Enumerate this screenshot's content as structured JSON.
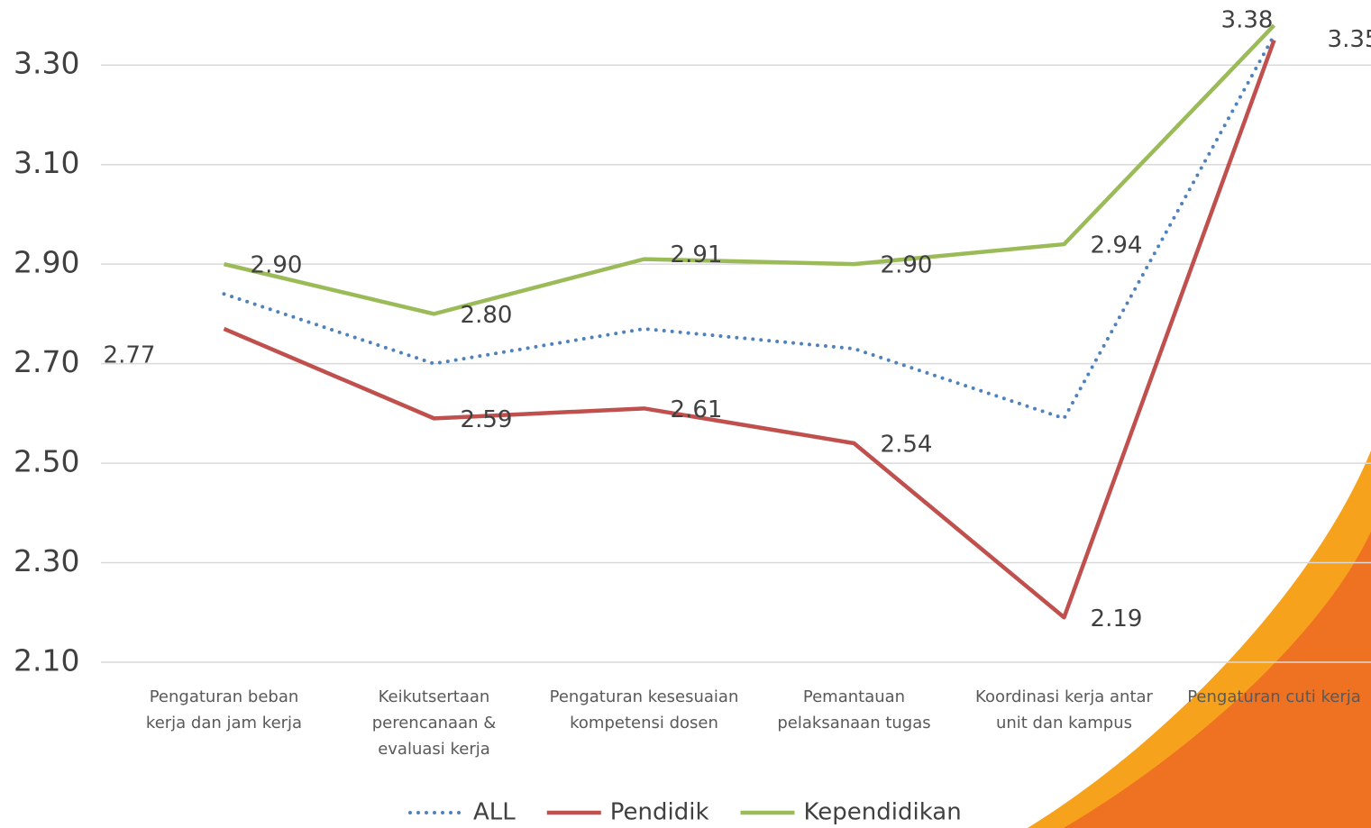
{
  "chart_data": {
    "type": "line",
    "categories": [
      "Pengaturan beban kerja dan jam kerja",
      "Keikutsertaan perencanaan & evaluasi kerja",
      "Pengaturan kesesuaian kompetensi dosen",
      "Pemantauan pelaksanaan tugas",
      "Koordinasi kerja antar unit dan kampus",
      "Pengaturan cuti kerja"
    ],
    "series": [
      {
        "name": "ALL",
        "color": "#4f81bd",
        "dash": true,
        "values": [
          2.84,
          2.7,
          2.77,
          2.73,
          2.59,
          3.36
        ]
      },
      {
        "name": "Pendidik",
        "color": "#c0504d",
        "values": [
          2.77,
          2.59,
          2.61,
          2.54,
          2.19,
          3.35
        ],
        "value_labels": [
          "2.77",
          "2.59",
          "2.61",
          "2.54",
          "2.19",
          "3.35"
        ]
      },
      {
        "name": "Kependidikan",
        "color": "#9bbb59",
        "values": [
          2.9,
          2.8,
          2.91,
          2.9,
          2.94,
          3.38
        ],
        "value_labels": [
          "2.90",
          "2.80",
          "2.91",
          "2.90",
          "2.94",
          "3.38"
        ]
      }
    ],
    "ylim": [
      2.1,
      3.4
    ],
    "yticks": [
      {
        "value": 2.1,
        "label": "2.10"
      },
      {
        "value": 2.3,
        "label": "2.30"
      },
      {
        "value": 2.5,
        "label": "2.50"
      },
      {
        "value": 2.7,
        "label": "2.70"
      },
      {
        "value": 2.9,
        "label": "2.90"
      },
      {
        "value": 3.1,
        "label": "3.10"
      },
      {
        "value": 3.3,
        "label": "3.30"
      }
    ],
    "grid": true
  }
}
